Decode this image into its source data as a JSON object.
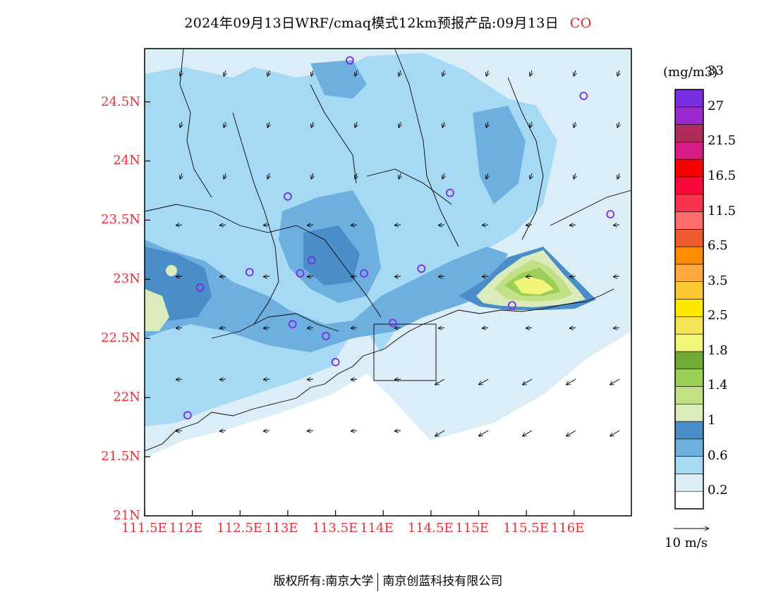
{
  "title": {
    "text": "2024年09月13日WRF/cmaq模式12km预报产品:09月13日",
    "species": "CO"
  },
  "axes": {
    "y_ticks": [
      "24.5N",
      "24N",
      "23.5N",
      "23N",
      "22.5N",
      "22N",
      "21.5N",
      "21N"
    ],
    "x_ticks": [
      "111.5E",
      "112E",
      "112.5E",
      "113E",
      "113.5E",
      "114E",
      "114.5E",
      "115E",
      "115.5E",
      "116E"
    ],
    "lon_range": [
      111.5,
      116.6
    ],
    "lat_range": [
      21.0,
      24.95
    ]
  },
  "colorbar": {
    "unit": "(mg/m3)",
    "colors": [
      "#ffffff",
      "#dbeef8",
      "#a6daf4",
      "#6db0e0",
      "#4a8ec9",
      "#dbebbb",
      "#c2e086",
      "#9ccf55",
      "#6eaa35",
      "#f1f57a",
      "#f6e458",
      "#fde800",
      "#fdc734",
      "#faa93a",
      "#fb8c00",
      "#ed5a2d",
      "#ff6b6b",
      "#f9334b",
      "#f90a3c",
      "#fb0000",
      "#d81b86",
      "#b02c5b",
      "#9b2ad0",
      "#7a2ee0"
    ],
    "labels": [
      "0.2",
      "0.6",
      "1",
      "1.4",
      "1.8",
      "2.5",
      "3.5",
      "6.5",
      "11.5",
      "16.5",
      "21.5",
      "27",
      "33"
    ]
  },
  "stations": [
    {
      "lon": 113.65,
      "lat": 24.85
    },
    {
      "lon": 116.1,
      "lat": 24.55
    },
    {
      "lon": 113.0,
      "lat": 23.7
    },
    {
      "lon": 114.7,
      "lat": 23.73
    },
    {
      "lon": 116.38,
      "lat": 23.55
    },
    {
      "lon": 113.25,
      "lat": 23.16
    },
    {
      "lon": 113.13,
      "lat": 23.05
    },
    {
      "lon": 112.6,
      "lat": 23.06
    },
    {
      "lon": 112.08,
      "lat": 22.93
    },
    {
      "lon": 113.8,
      "lat": 23.05
    },
    {
      "lon": 114.4,
      "lat": 23.09
    },
    {
      "lon": 113.05,
      "lat": 22.62
    },
    {
      "lon": 113.4,
      "lat": 22.52
    },
    {
      "lon": 114.1,
      "lat": 22.63
    },
    {
      "lon": 113.5,
      "lat": 22.3
    },
    {
      "lon": 115.35,
      "lat": 22.78
    },
    {
      "lon": 111.95,
      "lat": 21.85
    }
  ],
  "vector_legend": {
    "label": "10 m/s"
  },
  "footer": {
    "owner_label": "版权所有:南京大学",
    "partner": "南京创蓝科技有限公司"
  }
}
